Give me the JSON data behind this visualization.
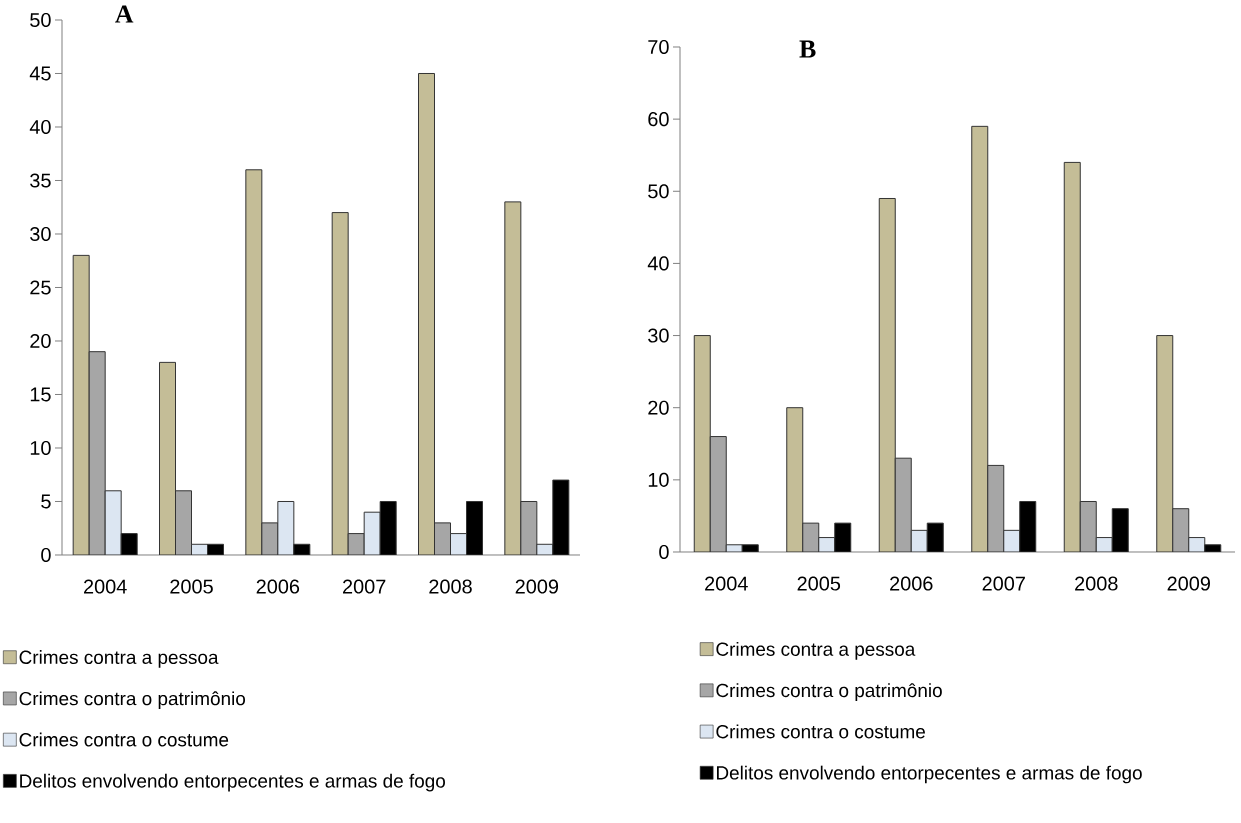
{
  "chart_data": [
    {
      "type": "bar",
      "title": "A",
      "categories": [
        "2004",
        "2005",
        "2006",
        "2007",
        "2008",
        "2009"
      ],
      "ylim": [
        0,
        50
      ],
      "yticks": [
        0,
        5,
        10,
        15,
        20,
        25,
        30,
        35,
        40,
        45,
        50
      ],
      "legend": "bottom",
      "series": [
        {
          "name": "Crimes contra a pessoa",
          "color": "#c4bd97",
          "values": [
            28,
            18,
            36,
            32,
            45,
            33
          ]
        },
        {
          "name": "Crimes contra o patrimônio",
          "color": "#a6a6a6",
          "values": [
            19,
            6,
            3,
            2,
            3,
            5
          ]
        },
        {
          "name": "Crimes contra o costume",
          "color": "#dce6f2",
          "values": [
            6,
            1,
            5,
            4,
            2,
            1
          ]
        },
        {
          "name": "Delitos envolvendo entorpecentes  e armas de fogo",
          "color": "#000000",
          "values": [
            2,
            1,
            1,
            5,
            5,
            7
          ]
        }
      ]
    },
    {
      "type": "bar",
      "title": "B",
      "categories": [
        "2004",
        "2005",
        "2006",
        "2007",
        "2008",
        "2009"
      ],
      "ylim": [
        0,
        70
      ],
      "yticks": [
        0,
        10,
        20,
        30,
        40,
        50,
        60,
        70
      ],
      "legend": "bottom",
      "series": [
        {
          "name": "Crimes contra a pessoa",
          "color": "#c4bd97",
          "values": [
            30,
            20,
            49,
            59,
            54,
            30
          ]
        },
        {
          "name": "Crimes contra o patrimônio",
          "color": "#a6a6a6",
          "values": [
            16,
            4,
            13,
            12,
            7,
            6
          ]
        },
        {
          "name": "Crimes contra o costume",
          "color": "#dce6f2",
          "values": [
            1,
            2,
            3,
            3,
            2,
            2
          ]
        },
        {
          "name": "Delitos envolvendo entorpecentes  e armas de fogo",
          "color": "#000000",
          "values": [
            1,
            4,
            4,
            7,
            6,
            1
          ]
        }
      ]
    }
  ]
}
